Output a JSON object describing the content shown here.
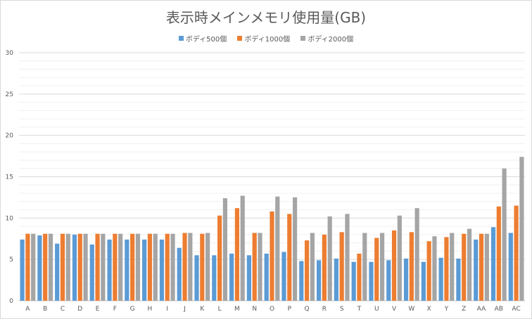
{
  "chart_data": {
    "type": "bar",
    "title": "表示時メインメモリ使用量(GB)",
    "xlabel": "",
    "ylabel": "",
    "ylim": [
      0,
      30
    ],
    "yticks": [
      0,
      5,
      10,
      15,
      20,
      25,
      30
    ],
    "grid": true,
    "legend_position": "top",
    "categories": [
      "A",
      "B",
      "C",
      "D",
      "E",
      "F",
      "G",
      "H",
      "I",
      "J",
      "K",
      "L",
      "M",
      "N",
      "O",
      "P",
      "Q",
      "R",
      "S",
      "T",
      "U",
      "V",
      "W",
      "X",
      "Y",
      "Z",
      "AA",
      "AB",
      "AC"
    ],
    "series": [
      {
        "name": "ボディ500個",
        "color": "#5b9bd5",
        "values": [
          7.4,
          7.9,
          6.9,
          8.0,
          6.8,
          7.4,
          7.4,
          7.4,
          7.4,
          6.4,
          5.5,
          5.5,
          5.7,
          5.5,
          5.7,
          5.9,
          4.8,
          4.9,
          5.1,
          4.7,
          4.7,
          4.9,
          5.1,
          4.7,
          5.2,
          5.1,
          7.4,
          8.9,
          8.2
        ]
      },
      {
        "name": "ボディ1000個",
        "color": "#ed7d31",
        "values": [
          8.1,
          8.1,
          8.1,
          8.1,
          8.1,
          8.1,
          8.1,
          8.1,
          8.1,
          8.2,
          8.1,
          10.3,
          11.2,
          8.2,
          10.8,
          10.5,
          7.3,
          8.0,
          8.3,
          5.7,
          7.6,
          8.5,
          8.3,
          7.2,
          7.7,
          8.1,
          8.1,
          11.4,
          11.5
        ]
      },
      {
        "name": "ボディ2000個",
        "color": "#a5a5a5",
        "values": [
          8.1,
          8.1,
          8.1,
          8.1,
          8.1,
          8.1,
          8.1,
          8.1,
          8.1,
          8.2,
          8.2,
          12.4,
          12.7,
          8.2,
          12.6,
          12.5,
          8.2,
          10.2,
          10.5,
          8.2,
          8.2,
          10.3,
          11.2,
          7.8,
          8.2,
          8.7,
          8.1,
          16.0,
          17.4
        ]
      }
    ]
  }
}
